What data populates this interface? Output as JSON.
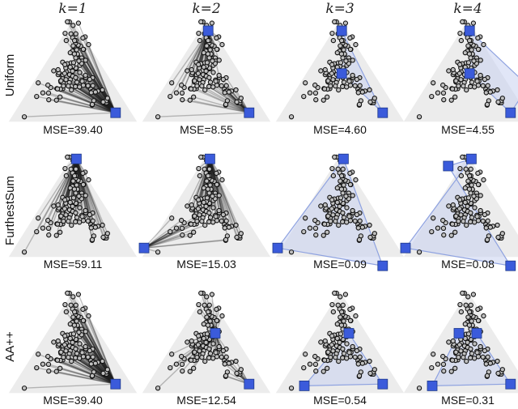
{
  "columns": [
    "k=1",
    "k=2",
    "k=3",
    "k=4"
  ],
  "column_titles": [
    {
      "var": "k",
      "eq": "=1"
    },
    {
      "var": "k",
      "eq": "=2"
    },
    {
      "var": "k",
      "eq": "=3"
    },
    {
      "var": "k",
      "eq": "=4"
    }
  ],
  "rows": [
    {
      "label": "Uniform",
      "panels": [
        {
          "mse": "MSE=39.40",
          "archetypes": [
            "corner-right"
          ]
        },
        {
          "mse": "MSE=8.55",
          "archetypes": [
            "top-inner",
            "corner-right"
          ]
        },
        {
          "mse": "MSE=4.60",
          "archetypes": [
            "top-inner",
            "center",
            "corner-right"
          ]
        },
        {
          "mse": "MSE=4.55",
          "archetypes": [
            "top-inner",
            "center",
            "corner-right",
            "far-right"
          ]
        }
      ]
    },
    {
      "label": "FurthestSum",
      "panels": [
        {
          "mse": "MSE=59.11",
          "archetypes": [
            "top-outer"
          ]
        },
        {
          "mse": "MSE=15.03",
          "archetypes": [
            "top-outer",
            "left-outer"
          ]
        },
        {
          "mse": "MSE=0.09",
          "archetypes": [
            "top-outer",
            "left-outer",
            "bottom-right-outer"
          ]
        },
        {
          "mse": "MSE=0.08",
          "archetypes": [
            "top-outer",
            "left-outer",
            "bottom-right-outer",
            "top-left-outer"
          ]
        }
      ]
    },
    {
      "label": "AA++",
      "panels": [
        {
          "mse": "MSE=39.40",
          "archetypes": [
            "corner-right"
          ]
        },
        {
          "mse": "MSE=12.54",
          "archetypes": [
            "upper-mid",
            "corner-right"
          ]
        },
        {
          "mse": "MSE=0.54",
          "archetypes": [
            "upper-mid",
            "left-corner",
            "corner-right"
          ]
        },
        {
          "mse": "MSE=0.31",
          "archetypes": [
            "upper-mid",
            "upper-left",
            "left-corner",
            "corner-right"
          ]
        }
      ]
    }
  ],
  "colors": {
    "archetype": "#3b5bdb",
    "hull_fill": "#c9d2f0",
    "hull_stroke": "#8ea2e0",
    "background_triangle": "#ececec",
    "point_stroke": "#111111",
    "point_fill": "#bfbfbf",
    "text": "#111111"
  }
}
